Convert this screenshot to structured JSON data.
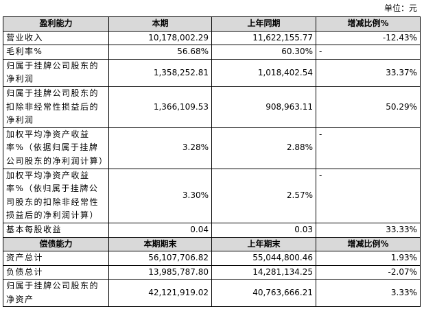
{
  "unit": "单位：元",
  "profit": {
    "header": [
      "盈利能力",
      "本期",
      "上年同期",
      "增减比例%"
    ],
    "rows": [
      [
        "营业收入",
        "10,178,002.29",
        "11,622,155.77",
        "-12.43%"
      ],
      [
        "毛利率%",
        "56.68%",
        "60.30%",
        "-"
      ],
      [
        "归属于挂牌公司股东的净利润",
        "1,358,252.81",
        "1,018,402.54",
        "33.37%"
      ],
      [
        "归属于挂牌公司股东的扣除非经常性损益后的净利润",
        "1,366,109.53",
        "908,963.11",
        "50.29%"
      ],
      [
        "加权平均净资产收益率%（依据归属于挂牌公司股东的净利润计算）",
        "3.28%",
        "2.88%",
        "-"
      ],
      [
        "加权平均净资产收益率%（依归属于挂牌公司股东的扣除非经常性损益后的净利润计算）",
        "3.30%",
        "2.57%",
        "-"
      ],
      [
        "基本每股收益",
        "0.04",
        "0.03",
        "33.33%"
      ]
    ]
  },
  "solvency": {
    "header": [
      "偿债能力",
      "本期期末",
      "上年期末",
      "增减比例%"
    ],
    "rows": [
      [
        "资产总计",
        "56,107,706.82",
        "55,044,800.46",
        "1.93%"
      ],
      [
        "负债总计",
        "13,985,787.80",
        "14,281,134.25",
        "-2.07%"
      ],
      [
        "归属于挂牌公司股东的净资产",
        "42,121,919.02",
        "40,763,666.21",
        "3.33%"
      ]
    ]
  }
}
